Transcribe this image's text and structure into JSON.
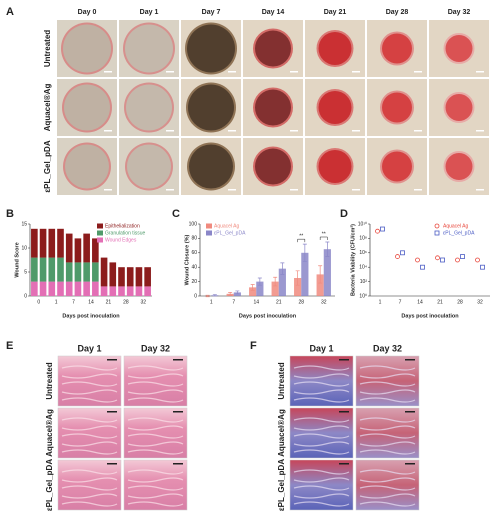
{
  "panel_labels": [
    "A",
    "B",
    "C",
    "D",
    "E",
    "F"
  ],
  "photo_grid": {
    "columns": [
      "Day 0",
      "Day 1",
      "Day 7",
      "Day 14",
      "Day 21",
      "Day 28",
      "Day 32"
    ],
    "rows": [
      "Untreated",
      "Aquacel®Ag",
      "εPL_Gel_pDA"
    ]
  },
  "chart_data": [
    {
      "type": "stacked_bar",
      "ylabel": "Wound Score",
      "xlabel": "Days post inoculation",
      "categories": [
        "0",
        null,
        "1",
        null,
        "7",
        null,
        "14",
        null,
        "21",
        null,
        "28",
        null,
        "32",
        null
      ],
      "series": [
        {
          "name": "Wound Edges",
          "color": "#e36fb5",
          "values": [
            3,
            3,
            3,
            3,
            3,
            3,
            3,
            3,
            2,
            2,
            2,
            2,
            2,
            2
          ]
        },
        {
          "name": "Granulation tissue",
          "color": "#4f9a6a",
          "values": [
            5,
            5,
            5,
            5,
            4,
            4,
            4,
            4,
            0,
            0,
            0,
            0,
            0,
            0
          ]
        },
        {
          "name": "Epithelialization",
          "color": "#8c1c1c",
          "values": [
            6,
            6,
            6,
            6,
            6,
            5,
            6,
            5,
            6,
            5,
            4,
            4,
            4,
            4
          ]
        }
      ],
      "ylim": [
        0,
        15
      ],
      "yticks": [
        0,
        5,
        10,
        15
      ],
      "legend": "upper right"
    },
    {
      "type": "grouped_bar",
      "ylabel": "Wound Closure (%)",
      "xlabel": "Days post inoculation",
      "categories": [
        "1",
        "7",
        "14",
        "21",
        "28",
        "32"
      ],
      "series": [
        {
          "name": "Aquacel Ag",
          "color": "#f08a7e",
          "values": [
            0,
            3,
            12,
            20,
            25,
            30
          ],
          "errors": [
            1,
            2,
            4,
            6,
            10,
            12
          ]
        },
        {
          "name": "εPL_Gel_pDA",
          "color": "#8a86c8",
          "values": [
            1,
            5,
            20,
            38,
            60,
            65
          ],
          "errors": [
            1,
            2,
            5,
            8,
            12,
            10
          ]
        }
      ],
      "ylim": [
        0,
        100
      ],
      "yticks": [
        0,
        20,
        40,
        60,
        80,
        100
      ],
      "legend": "upper left",
      "annotations": [
        {
          "text": "**",
          "category": "28"
        },
        {
          "text": "**",
          "category": "32"
        }
      ]
    },
    {
      "type": "scatter",
      "ylabel": "Bacteria Viability (CFU/cm²)",
      "xlabel": "Days post inoculation",
      "categories": [
        "1",
        "7",
        "14",
        "21",
        "28",
        "32"
      ],
      "log": true,
      "series": [
        {
          "name": "Aquacel Ag",
          "color": "#e8473c",
          "marker": "circle",
          "values": [
            1000000000,
            300000,
            100000,
            200000,
            100000,
            100000
          ]
        },
        {
          "name": "εPL_Gel_pDA",
          "color": "#4a5bc4",
          "marker": "square",
          "values": [
            2000000000,
            1000000,
            10000,
            100000,
            300000,
            10000
          ]
        }
      ],
      "ylim": [
        1,
        10000000000
      ],
      "yticks": [
        {
          "value": 1,
          "label": "10⁰"
        },
        {
          "value": 100,
          "label": "10²"
        },
        {
          "value": 10000,
          "label": "10⁴"
        },
        {
          "value": 1000000,
          "label": "10⁶"
        },
        {
          "value": 100000000,
          "label": "10⁸"
        },
        {
          "value": 10000000000,
          "label": "10¹⁰"
        }
      ],
      "legend": "upper right"
    }
  ],
  "histology": [
    {
      "columns": [
        "Day 1",
        "Day 32"
      ],
      "rows": [
        "Untreated",
        "Aquacel®Ag",
        "εPL_Gel_pDA"
      ]
    },
    {
      "columns": [
        "Day 1",
        "Day 32"
      ],
      "rows": [
        "Untreated",
        "Aquacel®Ag",
        "εPL_Gel_pDA"
      ]
    }
  ]
}
